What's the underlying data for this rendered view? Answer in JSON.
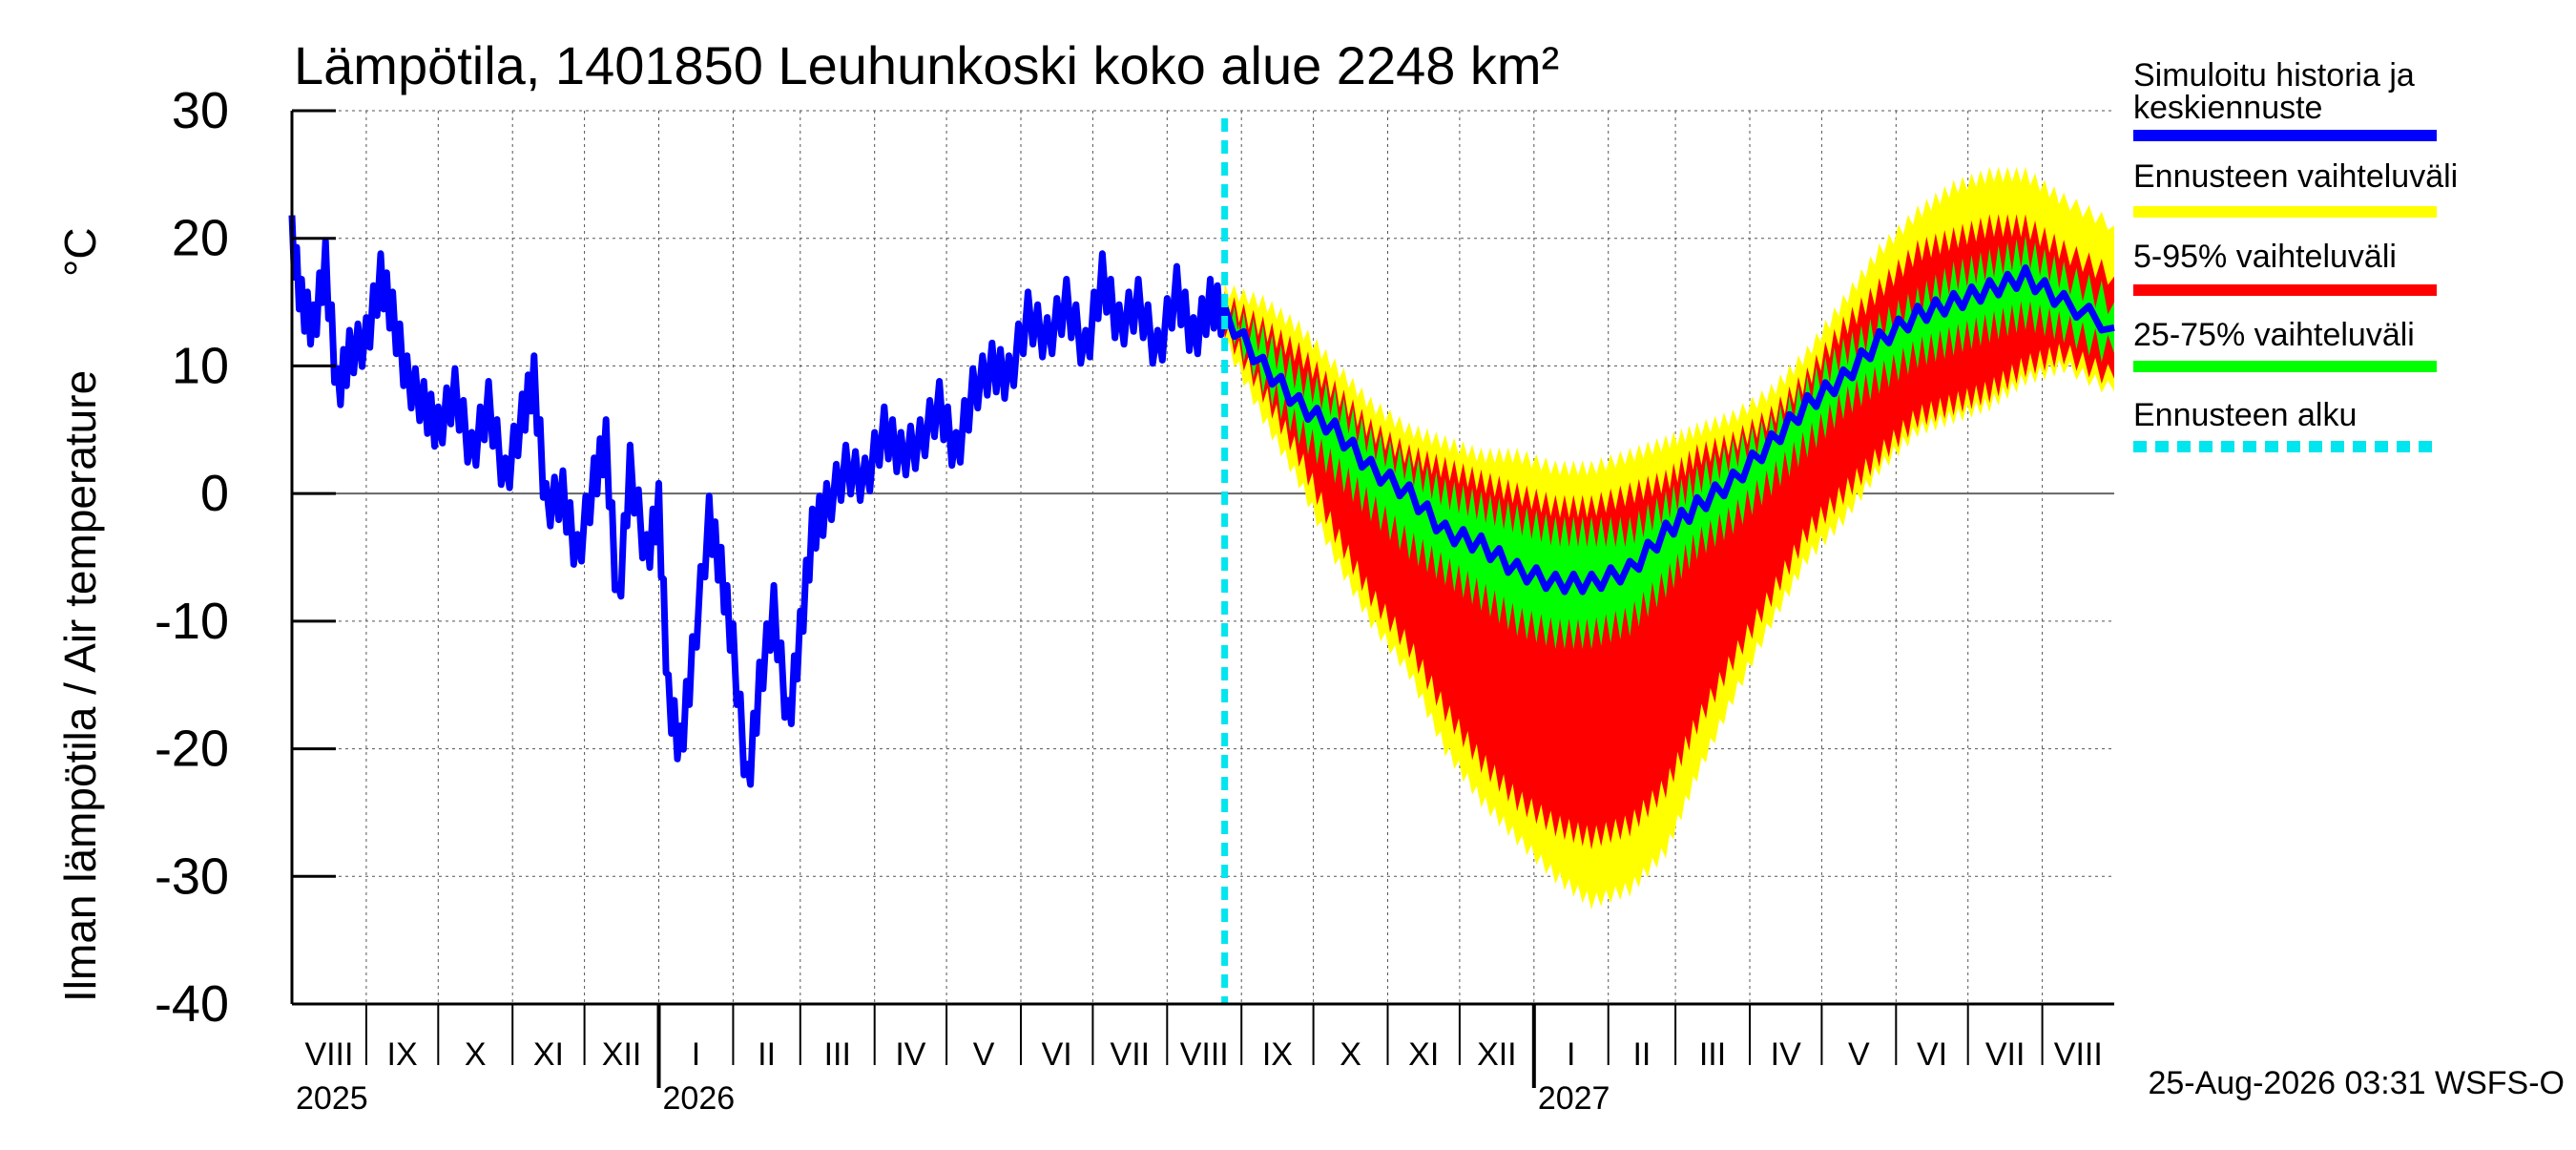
{
  "chart_data": {
    "type": "line",
    "title": "Lämpötila, 1401850 Leuhunkoski koko alue 2248 km²",
    "ylabel": "Ilman lämpötila / Air temperature",
    "unit": "°C",
    "ylim": [
      -40,
      30
    ],
    "yticks": [
      30,
      20,
      10,
      0,
      -10,
      -20,
      -30,
      -40
    ],
    "grid": true,
    "legend_position": "right",
    "x_range": [
      "2025-08-01",
      "2027-08-31"
    ],
    "forecast_start": "2026-08-25",
    "month_labels": [
      "VIII",
      "IX",
      "X",
      "XI",
      "XII",
      "I",
      "II",
      "III",
      "IV",
      "V",
      "VI",
      "VII",
      "VIII",
      "IX",
      "X",
      "XI",
      "XII",
      "I",
      "II",
      "III",
      "IV",
      "V",
      "VI",
      "VII",
      "VIII"
    ],
    "year_labels": [
      {
        "label": "2025",
        "date": "2025-08-01"
      },
      {
        "label": "2026",
        "date": "2026-01-01"
      },
      {
        "label": "2027",
        "date": "2027-01-01"
      }
    ],
    "legend": [
      {
        "label": "Simuloitu historia ja keskiennuste",
        "color": "#0000ff"
      },
      {
        "label": "Ennusteen vaihteluväli",
        "color": "#ffff00"
      },
      {
        "label": "5-95% vaihteluväli",
        "color": "#ff0000"
      },
      {
        "label": "25-75% vaihteluväli",
        "color": "#00ff00"
      },
      {
        "label": "Ennusteen alku",
        "color": "#00e5ee"
      }
    ],
    "series": [
      {
        "name": "Simuloitu historia ja keskiennuste",
        "color": "#0000ff",
        "points": [
          [
            "2025-08-01",
            20
          ],
          [
            "2025-08-05",
            15
          ],
          [
            "2025-08-10",
            13
          ],
          [
            "2025-08-15",
            18
          ],
          [
            "2025-08-20",
            8
          ],
          [
            "2025-08-25",
            11
          ],
          [
            "2025-09-01",
            12
          ],
          [
            "2025-09-07",
            17
          ],
          [
            "2025-09-12",
            14
          ],
          [
            "2025-09-18",
            9
          ],
          [
            "2025-09-25",
            7
          ],
          [
            "2025-10-01",
            5
          ],
          [
            "2025-10-08",
            8
          ],
          [
            "2025-10-15",
            3
          ],
          [
            "2025-10-22",
            7
          ],
          [
            "2025-10-29",
            1
          ],
          [
            "2025-11-05",
            6
          ],
          [
            "2025-11-10",
            9
          ],
          [
            "2025-11-15",
            -1
          ],
          [
            "2025-11-22",
            0
          ],
          [
            "2025-11-28",
            -5
          ],
          [
            "2025-12-05",
            1
          ],
          [
            "2025-12-10",
            4
          ],
          [
            "2025-12-15",
            -9
          ],
          [
            "2025-12-20",
            2
          ],
          [
            "2025-12-27",
            -5
          ],
          [
            "2026-01-01",
            -1
          ],
          [
            "2026-01-05",
            -16
          ],
          [
            "2026-01-10",
            -20
          ],
          [
            "2026-01-15",
            -13
          ],
          [
            "2026-01-22",
            -2
          ],
          [
            "2026-01-27",
            -6
          ],
          [
            "2026-02-01",
            -12
          ],
          [
            "2026-02-07",
            -23
          ],
          [
            "2026-02-12",
            -15
          ],
          [
            "2026-02-18",
            -9
          ],
          [
            "2026-02-24",
            -18
          ],
          [
            "2026-03-01",
            -11
          ],
          [
            "2026-03-06",
            -3
          ],
          [
            "2026-03-12",
            -1
          ],
          [
            "2026-03-20",
            2
          ],
          [
            "2026-03-28",
            1
          ],
          [
            "2026-04-05",
            5
          ],
          [
            "2026-04-12",
            3
          ],
          [
            "2026-04-20",
            4
          ],
          [
            "2026-04-28",
            7
          ],
          [
            "2026-05-05",
            3
          ],
          [
            "2026-05-12",
            8
          ],
          [
            "2026-05-20",
            10
          ],
          [
            "2026-05-27",
            9
          ],
          [
            "2026-06-04",
            14
          ],
          [
            "2026-06-12",
            12
          ],
          [
            "2026-06-20",
            15
          ],
          [
            "2026-06-28",
            11
          ],
          [
            "2026-07-05",
            17
          ],
          [
            "2026-07-12",
            13
          ],
          [
            "2026-07-20",
            15
          ],
          [
            "2026-07-28",
            11
          ],
          [
            "2026-08-05",
            16
          ],
          [
            "2026-08-12",
            12
          ],
          [
            "2026-08-19",
            15
          ],
          [
            "2026-08-25",
            14
          ],
          [
            "2026-09-10",
            10
          ],
          [
            "2026-09-25",
            7
          ],
          [
            "2026-10-10",
            5
          ],
          [
            "2026-10-25",
            2
          ],
          [
            "2026-11-10",
            0
          ],
          [
            "2026-11-25",
            -3
          ],
          [
            "2026-12-10",
            -4
          ],
          [
            "2026-12-25",
            -6
          ],
          [
            "2027-01-10",
            -7
          ],
          [
            "2027-01-25",
            -7
          ],
          [
            "2027-02-10",
            -6
          ],
          [
            "2027-02-25",
            -3
          ],
          [
            "2027-03-10",
            -1
          ],
          [
            "2027-03-25",
            1
          ],
          [
            "2027-04-10",
            4
          ],
          [
            "2027-04-25",
            7
          ],
          [
            "2027-05-10",
            9
          ],
          [
            "2027-05-25",
            12
          ],
          [
            "2027-06-10",
            14
          ],
          [
            "2027-06-25",
            15
          ],
          [
            "2027-07-10",
            16
          ],
          [
            "2027-07-25",
            17
          ],
          [
            "2027-08-10",
            15
          ],
          [
            "2027-08-31",
            13
          ]
        ]
      },
      {
        "name": "Ennusteen vaihteluväli",
        "color": "#ffff00",
        "dates": [
          "2026-08-25",
          "2026-09-10",
          "2026-09-25",
          "2026-10-10",
          "2026-10-25",
          "2026-11-10",
          "2026-11-25",
          "2026-12-10",
          "2026-12-25",
          "2027-01-10",
          "2027-01-25",
          "2027-02-10",
          "2027-02-25",
          "2027-03-10",
          "2027-03-25",
          "2027-04-10",
          "2027-04-25",
          "2027-05-10",
          "2027-05-25",
          "2027-06-10",
          "2027-06-25",
          "2027-07-10",
          "2027-07-25",
          "2027-08-10",
          "2027-08-31"
        ],
        "upper": [
          16,
          15,
          13,
          10,
          7,
          5,
          4,
          3,
          3,
          2,
          2,
          3,
          4,
          5,
          6,
          8,
          11,
          15,
          19,
          22,
          24,
          25,
          25,
          23,
          21
        ],
        "lower": [
          12,
          6,
          1,
          -5,
          -10,
          -14,
          -20,
          -24,
          -27,
          -30,
          -32,
          -31,
          -28,
          -22,
          -16,
          -10,
          -5,
          -2,
          2,
          5,
          6,
          7,
          9,
          10,
          8
        ]
      },
      {
        "name": "5-95% vaihteluväli",
        "color": "#ff0000",
        "dates": [
          "2026-08-25",
          "2026-09-10",
          "2026-09-25",
          "2026-10-10",
          "2026-10-25",
          "2026-11-10",
          "2026-11-25",
          "2026-12-10",
          "2026-12-25",
          "2027-01-10",
          "2027-01-25",
          "2027-02-10",
          "2027-02-25",
          "2027-03-10",
          "2027-03-25",
          "2027-04-10",
          "2027-04-25",
          "2027-05-10",
          "2027-05-25",
          "2027-06-10",
          "2027-06-25",
          "2027-07-10",
          "2027-07-25",
          "2027-08-10",
          "2027-08-31"
        ],
        "upper": [
          15,
          13,
          11,
          8,
          5,
          3,
          2,
          1,
          0,
          -1,
          -1,
          0,
          1,
          3,
          4,
          6,
          9,
          13,
          16,
          19,
          20,
          21,
          21,
          19,
          17
        ],
        "lower": [
          13,
          8,
          3,
          -3,
          -8,
          -12,
          -17,
          -21,
          -24,
          -26,
          -27,
          -26,
          -23,
          -18,
          -13,
          -8,
          -3,
          0,
          3,
          6,
          7,
          8,
          10,
          11,
          9
        ]
      },
      {
        "name": "25-75% vaihteluväli",
        "color": "#00ff00",
        "dates": [
          "2026-08-25",
          "2026-09-10",
          "2026-09-25",
          "2026-10-10",
          "2026-10-25",
          "2026-11-10",
          "2026-11-25",
          "2026-12-10",
          "2026-12-25",
          "2027-01-10",
          "2027-01-25",
          "2027-02-10",
          "2027-02-25",
          "2027-03-10",
          "2027-03-25",
          "2027-04-10",
          "2027-04-25",
          "2027-05-10",
          "2027-05-25",
          "2027-06-10",
          "2027-06-25",
          "2027-07-10",
          "2027-07-25",
          "2027-08-10",
          "2027-08-31"
        ],
        "upper": [
          14,
          12,
          9,
          7,
          4,
          2,
          0,
          -1,
          -2,
          -3,
          -3,
          -3,
          -1,
          1,
          3,
          5,
          8,
          11,
          13,
          15,
          17,
          18,
          19,
          17,
          15
        ],
        "lower": [
          14,
          9,
          5,
          2,
          -1,
          -4,
          -6,
          -8,
          -10,
          -11,
          -11,
          -10,
          -7,
          -4,
          -2,
          1,
          4,
          7,
          9,
          11,
          12,
          13,
          14,
          13,
          11
        ]
      }
    ]
  },
  "footer": "25-Aug-2026 03:31 WSFS-O"
}
